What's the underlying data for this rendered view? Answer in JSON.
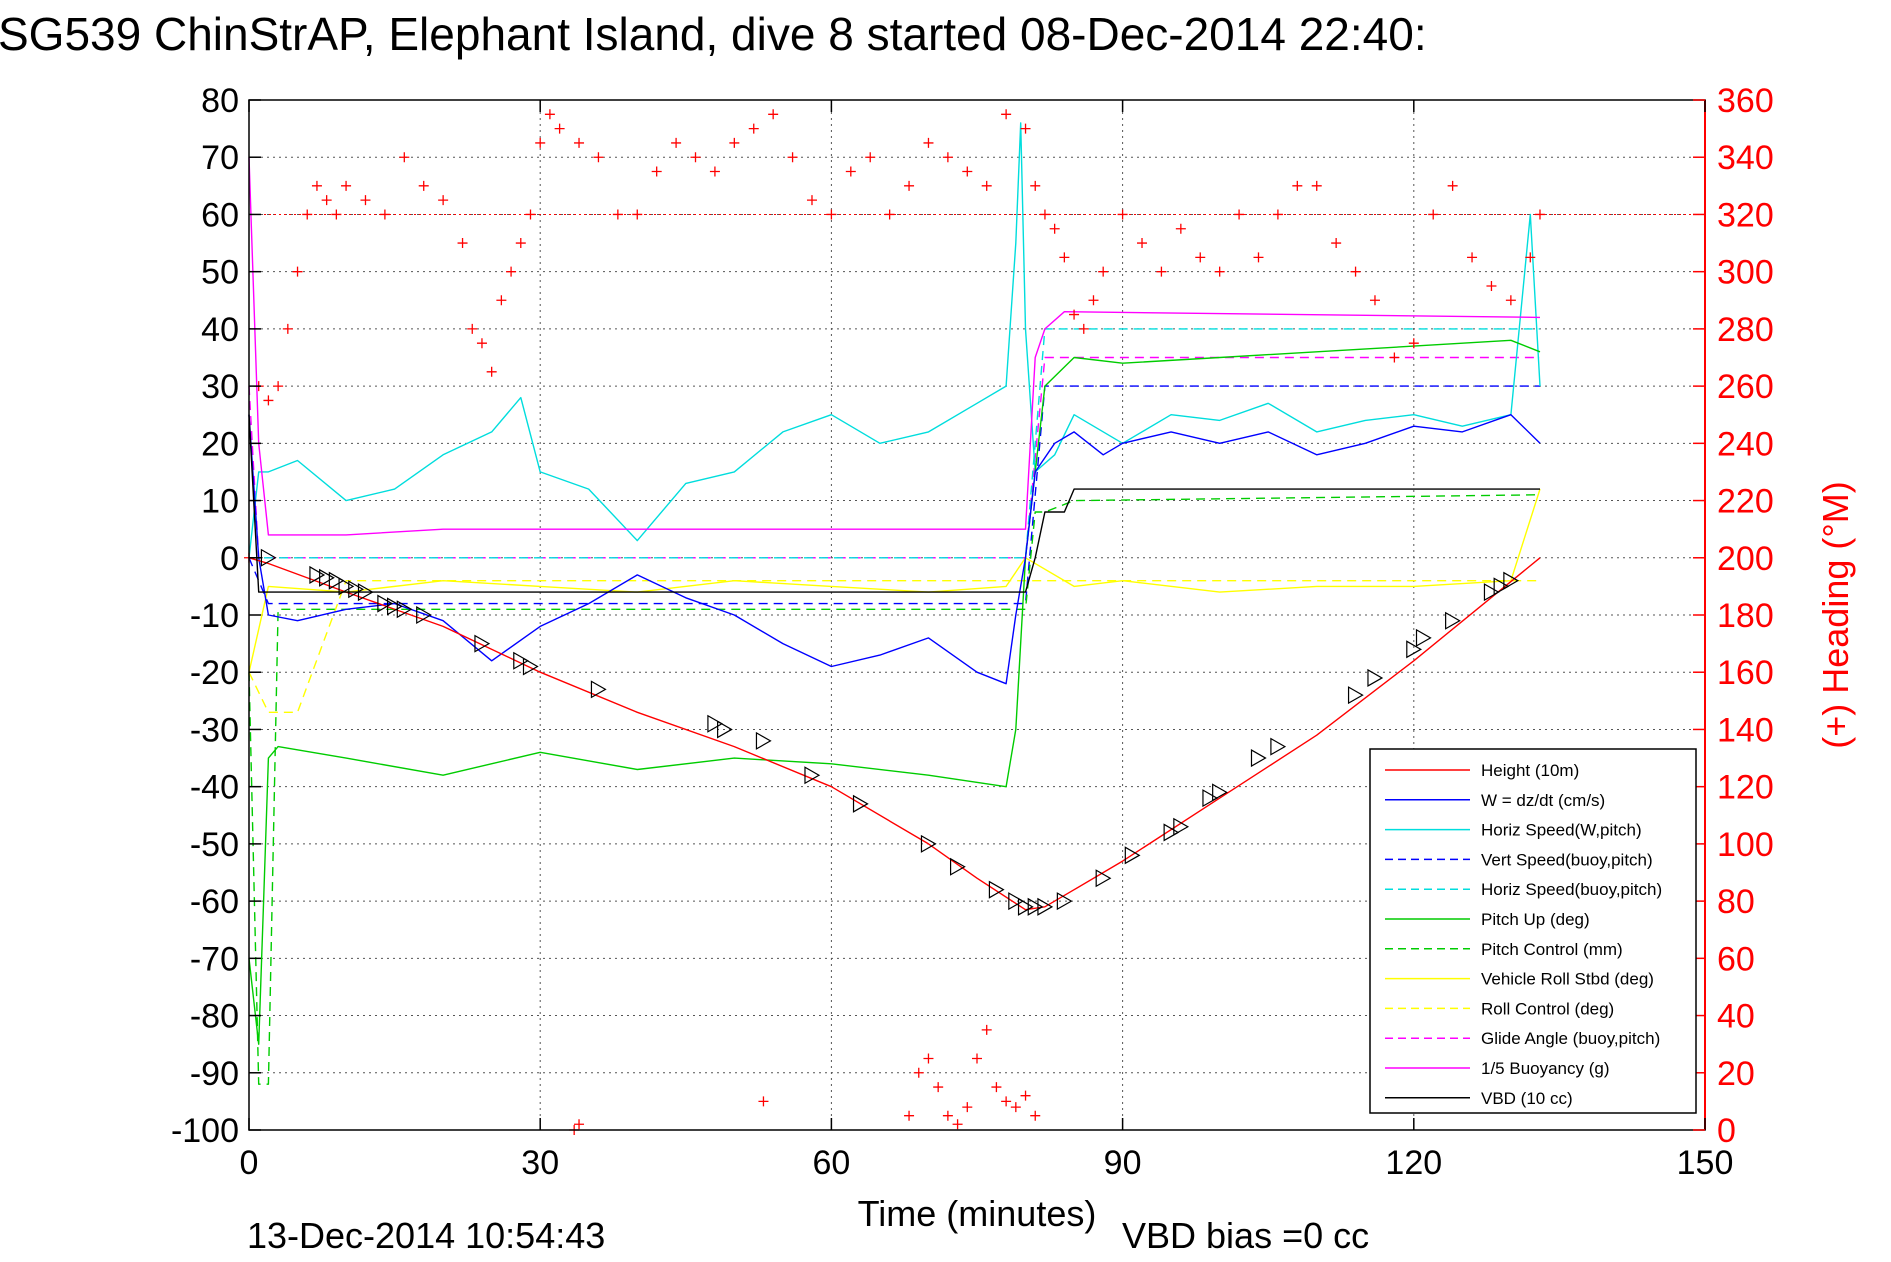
{
  "chart_data": {
    "type": "line",
    "title": "SG539 ChinStrAP, Elephant Island, dive 8 started 08-Dec-2014 22:40:",
    "xlabel": "Time (minutes)",
    "ylabel": "",
    "y2label": "(+) Heading (°M)",
    "xlim": [
      0,
      150
    ],
    "ylim": [
      -100,
      80
    ],
    "y2lim": [
      0,
      360
    ],
    "x_ticks": [
      "0",
      "30",
      "60",
      "90",
      "120",
      "150"
    ],
    "y_ticks": [
      "80",
      "70",
      "60",
      "50",
      "40",
      "30",
      "20",
      "10",
      "0",
      "-10",
      "-20",
      "-30",
      "-40",
      "-50",
      "-60",
      "-70",
      "-80",
      "-90",
      "-100"
    ],
    "y2_ticks": [
      "360",
      "340",
      "320",
      "300",
      "280",
      "260",
      "240",
      "220",
      "200",
      "180",
      "160",
      "140",
      "120",
      "100",
      "80",
      "60",
      "40",
      "20",
      "0"
    ],
    "grid": true,
    "legend_position": "bottom-right",
    "footer_date": "13-Dec-2014 10:54:43",
    "footer_note": "VBD bias =0 cc",
    "series": [
      {
        "name": "Height (10m)",
        "color": "#ff0000",
        "dash": "solid",
        "x": [
          0,
          2,
          10,
          20,
          30,
          40,
          50,
          60,
          70,
          75,
          80,
          82,
          85,
          90,
          100,
          110,
          120,
          133
        ],
        "y": [
          0,
          -1,
          -6,
          -12,
          -20,
          -27,
          -33,
          -40,
          -50,
          -56,
          -61.5,
          -61,
          -58,
          -53,
          -42,
          -31,
          -18,
          0
        ]
      },
      {
        "name": "W = dz/dt (cm/s)",
        "color": "#0000ff",
        "dash": "solid",
        "x": [
          0,
          1,
          2,
          5,
          10,
          15,
          20,
          25,
          30,
          35,
          40,
          45,
          50,
          55,
          60,
          65,
          70,
          75,
          78,
          79,
          80,
          81,
          83,
          85,
          88,
          90,
          95,
          100,
          105,
          110,
          115,
          120,
          125,
          130,
          133
        ],
        "y": [
          25,
          0,
          -10,
          -11,
          -9,
          -8,
          -11,
          -18,
          -12,
          -8,
          -3,
          -7,
          -10,
          -15,
          -19,
          -17,
          -14,
          -20,
          -22,
          -10,
          0,
          15,
          20,
          22,
          18,
          20,
          22,
          20,
          22,
          18,
          20,
          23,
          22,
          25,
          20
        ]
      },
      {
        "name": "Horiz Speed(W,pitch)",
        "color": "#00dddd",
        "dash": "solid",
        "x": [
          0,
          1,
          2,
          5,
          10,
          15,
          20,
          25,
          28,
          30,
          35,
          40,
          45,
          50,
          55,
          60,
          65,
          70,
          75,
          78,
          79,
          79.5,
          80,
          81,
          83,
          85,
          90,
          95,
          100,
          105,
          110,
          115,
          120,
          125,
          130,
          132,
          133
        ],
        "y": [
          0,
          15,
          15,
          17,
          10,
          12,
          18,
          22,
          28,
          15,
          12,
          3,
          13,
          15,
          22,
          25,
          20,
          22,
          27,
          30,
          55,
          76,
          40,
          15,
          18,
          25,
          20,
          25,
          24,
          27,
          22,
          24,
          25,
          23,
          25,
          60,
          30
        ]
      },
      {
        "name": "Vert Speed(buoy,pitch)",
        "color": "#0000ff",
        "dash": "dashed",
        "x": [
          0,
          2,
          80,
          82,
          133
        ],
        "y": [
          0,
          -8,
          -8,
          30,
          30
        ]
      },
      {
        "name": "Horiz Speed(buoy,pitch)",
        "color": "#00dddd",
        "dash": "dashed",
        "x": [
          0,
          2,
          80,
          82,
          133
        ],
        "y": [
          0,
          0,
          0,
          40,
          40
        ]
      },
      {
        "name": "Pitch Up (deg)",
        "color": "#00cc00",
        "dash": "solid",
        "x": [
          0,
          1,
          1.5,
          2,
          3,
          10,
          20,
          30,
          40,
          50,
          60,
          70,
          78,
          79,
          80,
          82,
          85,
          90,
          100,
          110,
          120,
          130,
          133
        ],
        "y": [
          -70,
          -85,
          -60,
          -35,
          -33,
          -35,
          -38,
          -34,
          -37,
          -35,
          -36,
          -38,
          -40,
          -30,
          0,
          30,
          35,
          34,
          35,
          36,
          37,
          38,
          36
        ]
      },
      {
        "name": "Pitch Control (mm)",
        "color": "#00cc00",
        "dash": "dashed",
        "x": [
          0,
          1,
          2,
          3,
          80,
          81,
          82,
          85,
          133
        ],
        "y": [
          -20,
          -92,
          -92,
          -9,
          -9,
          8,
          8,
          10,
          11
        ]
      },
      {
        "name": "Vehicle Roll Stbd (deg)",
        "color": "#ffff00",
        "dash": "solid",
        "x": [
          0,
          2,
          10,
          20,
          30,
          40,
          50,
          60,
          70,
          78,
          80,
          85,
          90,
          100,
          110,
          120,
          130,
          133
        ],
        "y": [
          -20,
          -5,
          -6,
          -4,
          -5,
          -6,
          -4,
          -5,
          -6,
          -5,
          0,
          -5,
          -4,
          -6,
          -5,
          -5,
          -4,
          12
        ]
      },
      {
        "name": "Roll Control (deg)",
        "color": "#ffff00",
        "dash": "dashed",
        "x": [
          0,
          2,
          5,
          10,
          20,
          30,
          40,
          50,
          60,
          70,
          78,
          80,
          85,
          90,
          100,
          110,
          120,
          130,
          133
        ],
        "y": [
          -20,
          -27,
          -27,
          -4,
          -4,
          -4,
          -4,
          -4,
          -4,
          -4,
          -4,
          -4,
          -4,
          -4,
          -4,
          -4,
          -4,
          -4,
          -4
        ]
      },
      {
        "name": "Glide Angle (buoy,pitch)",
        "color": "#ff00ff",
        "dash": "dashed",
        "x": [
          0,
          1,
          2,
          80,
          82,
          133
        ],
        "y": [
          30,
          0,
          0,
          0,
          35,
          35
        ]
      },
      {
        "name": "1/5 Buoyancy (g)",
        "color": "#ff00ff",
        "dash": "solid",
        "x": [
          0,
          1,
          2,
          10,
          20,
          80,
          81,
          82,
          84,
          133
        ],
        "y": [
          70,
          20,
          4,
          4,
          5,
          5,
          35,
          40,
          43,
          42
        ]
      },
      {
        "name": "VBD (10 cc)",
        "color": "#000000",
        "dash": "solid",
        "x": [
          0,
          1,
          2,
          80,
          81,
          82,
          84,
          85,
          133
        ],
        "y": [
          25,
          -6,
          -6,
          -6,
          0,
          8,
          8,
          12,
          12
        ]
      }
    ],
    "heading_series": {
      "name": "(+) Heading",
      "color": "#ff0000",
      "axis": "right",
      "marker": "+",
      "reference_line": 320,
      "x": [
        0,
        1,
        2,
        3,
        4,
        5,
        6,
        7,
        8,
        9,
        10,
        12,
        14,
        16,
        18,
        20,
        22,
        23,
        24,
        25,
        26,
        27,
        28,
        29,
        30,
        31,
        32,
        34,
        36,
        38,
        40,
        42,
        44,
        46,
        48,
        50,
        52,
        54,
        56,
        58,
        60,
        62,
        64,
        66,
        68,
        70,
        72,
        74,
        76,
        78,
        80,
        81,
        82,
        83,
        84,
        85,
        86,
        87,
        88,
        90,
        92,
        94,
        96,
        98,
        100,
        102,
        104,
        106,
        108,
        110,
        112,
        114,
        116,
        118,
        120,
        122,
        124,
        126,
        128,
        130,
        132,
        133
      ],
      "y": [
        200,
        260,
        255,
        260,
        280,
        300,
        320,
        330,
        325,
        320,
        330,
        325,
        320,
        340,
        330,
        325,
        310,
        280,
        275,
        265,
        290,
        300,
        310,
        320,
        345,
        355,
        350,
        345,
        340,
        320,
        320,
        335,
        345,
        340,
        335,
        345,
        350,
        355,
        340,
        325,
        320,
        335,
        340,
        320,
        330,
        345,
        340,
        335,
        330,
        355,
        350,
        330,
        320,
        315,
        305,
        285,
        280,
        290,
        300,
        320,
        310,
        300,
        315,
        305,
        300,
        320,
        305,
        320,
        330,
        330,
        310,
        300,
        290,
        270,
        275,
        320,
        330,
        305,
        295,
        290,
        305,
        320
      ]
    },
    "heading_cluster": {
      "x": [
        68,
        69,
        70,
        71,
        72,
        73,
        74,
        75,
        76,
        77,
        78,
        79,
        80,
        81
      ],
      "y": [
        5,
        20,
        25,
        15,
        5,
        2,
        8,
        25,
        35,
        15,
        10,
        8,
        12,
        5
      ]
    },
    "heading_outliers": {
      "x": [
        34,
        53,
        33.5
      ],
      "y": [
        2,
        10,
        0
      ]
    },
    "triangle_markers": {
      "x": [
        2,
        7,
        8,
        9,
        10,
        11,
        12,
        14,
        15,
        16,
        18,
        24,
        28,
        29,
        36,
        48,
        49,
        53,
        58,
        63,
        70,
        73,
        77,
        79,
        80,
        81,
        82,
        84,
        88,
        91,
        95,
        96,
        99,
        100,
        104,
        106,
        114,
        116,
        120,
        121,
        124,
        128,
        129,
        130
      ],
      "y": [
        0,
        -3,
        -3.5,
        -4,
        -5,
        -5.5,
        -6,
        -8,
        -8.5,
        -9,
        -10,
        -15,
        -18,
        -19,
        -23,
        -29,
        -30,
        -32,
        -38,
        -43,
        -50,
        -54,
        -58,
        -60,
        -61,
        -61,
        -61,
        -60,
        -56,
        -52,
        -48,
        -47,
        -42,
        -41,
        -35,
        -33,
        -24,
        -21,
        -16,
        -14,
        -11,
        -6,
        -5,
        -4
      ]
    }
  }
}
